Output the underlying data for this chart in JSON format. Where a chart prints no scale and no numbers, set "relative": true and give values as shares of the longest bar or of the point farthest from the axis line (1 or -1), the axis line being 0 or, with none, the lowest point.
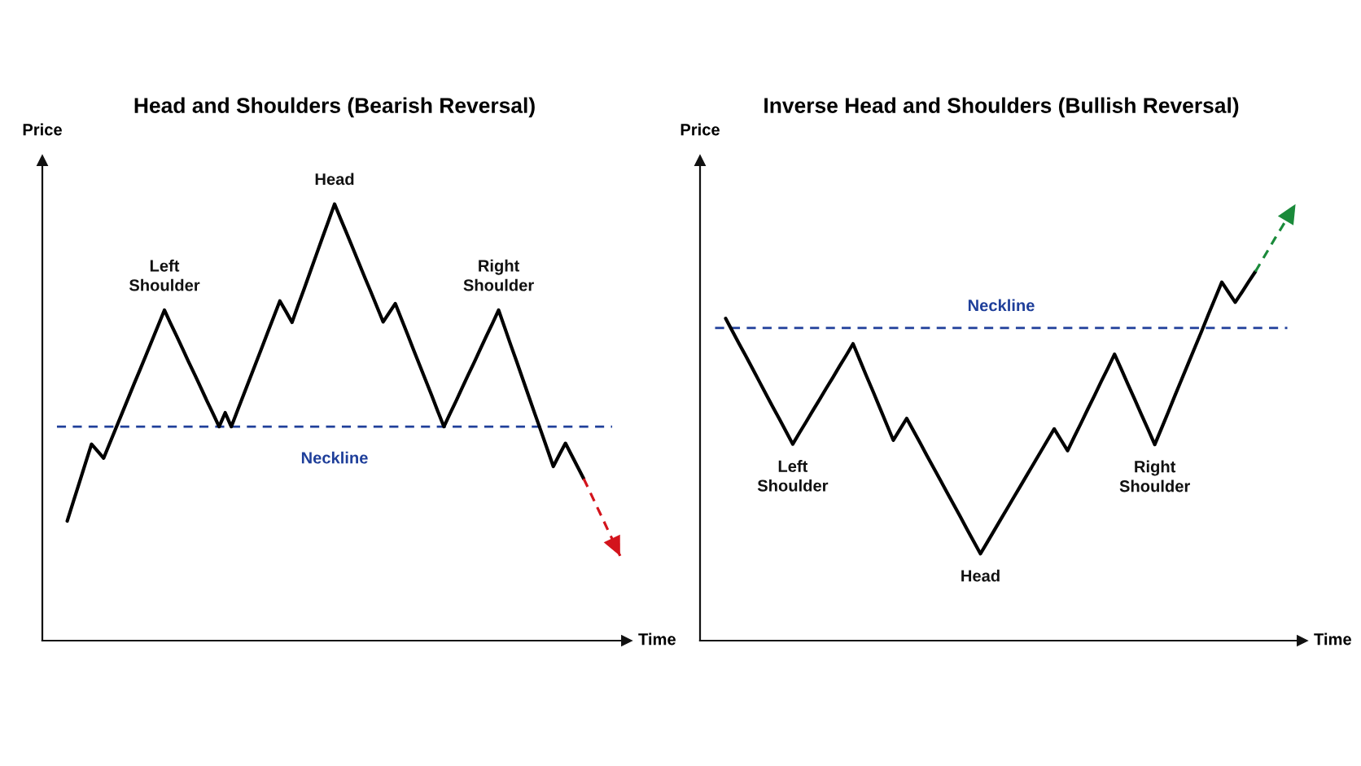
{
  "chart_data": [
    {
      "type": "line",
      "title": "Head and Shoulders (Bearish Reversal)",
      "xlabel": "Time",
      "ylabel": "Price",
      "relative": true,
      "categories": [
        null,
        null,
        null,
        null,
        null,
        null,
        null,
        null,
        null,
        null,
        null,
        null,
        null,
        null,
        null,
        null,
        null,
        null,
        null,
        null,
        null,
        null,
        null,
        null,
        null,
        null,
        null,
        null,
        null,
        null,
        null,
        null,
        null,
        null,
        null,
        null,
        null,
        null,
        null,
        null,
        null,
        null,
        null,
        null,
        null,
        null,
        null,
        null,
        null,
        null,
        null,
        null,
        null,
        null,
        null,
        null,
        null,
        null,
        null,
        null,
        null,
        null,
        null,
        null,
        null,
        null,
        null,
        null,
        null,
        null,
        null,
        null,
        null,
        null,
        null,
        null,
        null,
        null,
        null,
        null,
        null,
        null,
        null,
        null,
        null,
        null,
        null,
        null,
        null,
        null,
        null,
        null
      ],
      "series": [
        {
          "color": "#000000",
          "values": [
            0.274,
            0.318,
            0.362,
            0.406,
            0.45,
            0.434,
            0.418,
            0.452,
            0.486,
            0.52,
            0.554,
            0.588,
            0.621,
            0.655,
            0.689,
            0.723,
            0.757,
            0.727,
            0.698,
            0.668,
            0.638,
            0.609,
            0.579,
            0.549,
            0.52,
            0.49,
            0.522,
            0.49,
            0.526,
            0.562,
            0.598,
            0.634,
            0.67,
            0.706,
            0.742,
            0.778,
            0.754,
            0.729,
            0.768,
            0.806,
            0.845,
            0.884,
            0.923,
            0.961,
            1.0,
            0.966,
            0.933,
            0.899,
            0.865,
            0.831,
            0.798,
            0.764,
            0.73,
            0.751,
            0.772,
            0.737,
            0.702,
            0.666,
            0.631,
            0.596,
            0.561,
            0.525,
            0.49,
            0.52,
            0.549,
            0.579,
            0.609,
            0.638,
            0.668,
            0.698,
            0.727,
            0.757,
            0.717,
            0.677,
            0.638,
            0.598,
            0.558,
            0.518,
            0.479,
            0.439,
            0.399,
            0.426,
            0.452,
            0.425,
            0.398,
            0.371,
            null,
            null,
            null,
            null,
            null,
            null
          ]
        },
        {
          "color": "#d3141c",
          "line_style": "dashed",
          "values": [
            null,
            null,
            null,
            null,
            null,
            null,
            null,
            null,
            null,
            null,
            null,
            null,
            null,
            null,
            null,
            null,
            null,
            null,
            null,
            null,
            null,
            null,
            null,
            null,
            null,
            null,
            null,
            null,
            null,
            null,
            null,
            null,
            null,
            null,
            null,
            null,
            null,
            null,
            null,
            null,
            null,
            null,
            null,
            null,
            null,
            null,
            null,
            null,
            null,
            null,
            null,
            null,
            null,
            null,
            null,
            null,
            null,
            null,
            null,
            null,
            null,
            null,
            null,
            null,
            null,
            null,
            null,
            null,
            null,
            null,
            null,
            null,
            null,
            null,
            null,
            null,
            null,
            null,
            null,
            null,
            null,
            null,
            null,
            null,
            null,
            0.371,
            0.342,
            0.312,
            0.283,
            0.253,
            0.224,
            0.194
          ]
        }
      ],
      "ref_lines": [
        {
          "axis": "y",
          "value": 0.49,
          "label": "Neckline",
          "color": "#1f3f9a",
          "line_style": "dashed"
        }
      ],
      "annotations": [
        {
          "text": "Left\nShoulder",
          "y": 0.757
        },
        {
          "text": "Head",
          "y": 1.0
        },
        {
          "text": "Right\nShoulder",
          "y": 0.757
        }
      ]
    },
    {
      "type": "line",
      "title": "Inverse Head and Shoulders (Bullish Reversal)",
      "xlabel": "Time",
      "ylabel": "Price",
      "relative": true,
      "categories": [
        null,
        null,
        null,
        null,
        null,
        null,
        null,
        null,
        null,
        null,
        null,
        null,
        null,
        null,
        null,
        null,
        null,
        null,
        null,
        null,
        null,
        null,
        null,
        null,
        null,
        null,
        null,
        null,
        null,
        null,
        null,
        null,
        null,
        null,
        null,
        null,
        null,
        null,
        null,
        null,
        null,
        null,
        null,
        null,
        null,
        null,
        null,
        null,
        null,
        null,
        null,
        null,
        null,
        null,
        null,
        null,
        null,
        null,
        null,
        null,
        null,
        null,
        null,
        null,
        null,
        null,
        null,
        null,
        null,
        null,
        null,
        null,
        null,
        null,
        null,
        null,
        null,
        null,
        null,
        null,
        null,
        null,
        null,
        null,
        null,
        null
      ],
      "series": [
        {
          "color": "#000000",
          "values": [
            0.738,
            0.709,
            0.68,
            0.652,
            0.623,
            0.594,
            0.565,
            0.536,
            0.508,
            0.479,
            0.45,
            0.476,
            0.501,
            0.527,
            0.552,
            0.578,
            0.603,
            0.629,
            0.654,
            0.68,
            0.643,
            0.606,
            0.57,
            0.533,
            0.496,
            0.459,
            0.484,
            0.509,
            0.481,
            0.453,
            0.424,
            0.396,
            0.368,
            0.34,
            0.312,
            0.284,
            0.255,
            0.227,
            0.199,
            0.225,
            0.251,
            0.277,
            0.303,
            0.329,
            0.355,
            0.381,
            0.407,
            0.433,
            0.459,
            0.485,
            0.46,
            0.435,
            0.467,
            0.498,
            0.53,
            0.561,
            0.593,
            0.624,
            0.656,
            0.622,
            0.587,
            0.553,
            0.518,
            0.484,
            0.449,
            0.486,
            0.523,
            0.561,
            0.598,
            0.635,
            0.672,
            0.709,
            0.747,
            0.784,
            0.821,
            0.798,
            0.775,
            0.798,
            0.822,
            0.845,
            null,
            null,
            null,
            null,
            null,
            null
          ]
        },
        {
          "color": "#1a8a3a",
          "line_style": "dashed",
          "values": [
            null,
            null,
            null,
            null,
            null,
            null,
            null,
            null,
            null,
            null,
            null,
            null,
            null,
            null,
            null,
            null,
            null,
            null,
            null,
            null,
            null,
            null,
            null,
            null,
            null,
            null,
            null,
            null,
            null,
            null,
            null,
            null,
            null,
            null,
            null,
            null,
            null,
            null,
            null,
            null,
            null,
            null,
            null,
            null,
            null,
            null,
            null,
            null,
            null,
            null,
            null,
            null,
            null,
            null,
            null,
            null,
            null,
            null,
            null,
            null,
            null,
            null,
            null,
            null,
            null,
            null,
            null,
            null,
            null,
            null,
            null,
            null,
            null,
            null,
            null,
            null,
            null,
            null,
            null,
            0.845,
            0.871,
            0.897,
            0.923,
            0.948,
            0.974,
            1.0
          ]
        }
      ],
      "ref_lines": [
        {
          "axis": "y",
          "value": 0.716,
          "label": "Neckline",
          "color": "#1f3f9a",
          "line_style": "dashed"
        }
      ],
      "annotations": [
        {
          "text": "Left\nShoulder",
          "y": 0.45
        },
        {
          "text": "Head",
          "y": 0.199
        },
        {
          "text": "Right\nShoulder",
          "y": 0.449
        }
      ]
    }
  ]
}
